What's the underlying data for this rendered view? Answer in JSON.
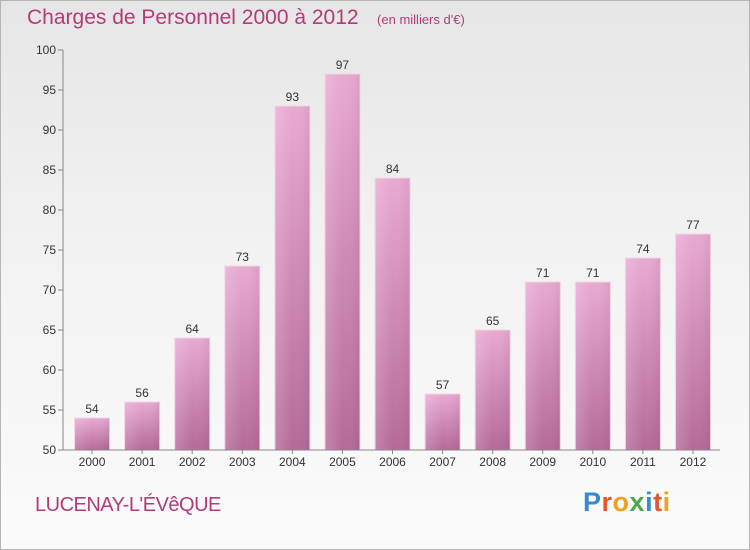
{
  "header": {
    "title": "Charges de Personnel 2000 à 2012",
    "subtitle": "(en milliers d'€)"
  },
  "footer": {
    "commune": "LUCENAY-L'ÉVêQUE",
    "logo_text": "Proxiti",
    "logo_colors": [
      "#3a8ad2",
      "#e25a2c",
      "#f2a11d",
      "#4aa84a",
      "#3a8ad2",
      "#e25a2c",
      "#f2a11d"
    ]
  },
  "colors": {
    "bar_top": "#e8a9d2",
    "bar_bottom": "#b56a98",
    "axis": "#888888",
    "label": "#333333"
  },
  "chart_data": {
    "type": "bar",
    "title": "Charges de Personnel 2000 à 2012",
    "subtitle": "(en milliers d'€)",
    "categories": [
      "2000",
      "2001",
      "2002",
      "2003",
      "2004",
      "2005",
      "2006",
      "2007",
      "2008",
      "2009",
      "2010",
      "2011",
      "2012"
    ],
    "values": [
      54,
      56,
      64,
      73,
      93,
      97,
      84,
      57,
      65,
      71,
      71,
      74,
      77
    ],
    "ylim": [
      50,
      100
    ],
    "yticks": [
      50,
      55,
      60,
      65,
      70,
      75,
      80,
      85,
      90,
      95,
      100
    ],
    "grid": false,
    "data_labels": true
  }
}
